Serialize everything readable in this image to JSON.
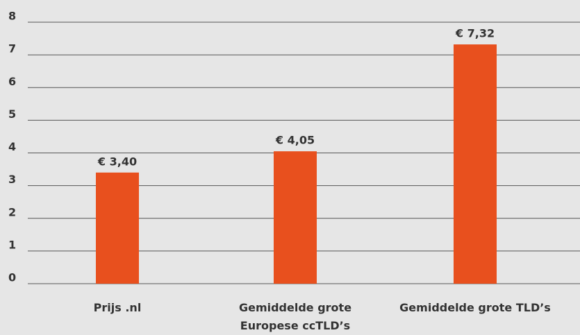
{
  "chart_data": {
    "type": "bar",
    "categories": [
      "Prijs .nl",
      "Gemiddelde grote\nEuropese ccTLD’s",
      "Gemiddelde grote TLD’s"
    ],
    "values": [
      3.4,
      4.05,
      7.32
    ],
    "value_labels": [
      "€ 3,40",
      "€ 4,05",
      "€ 7,32"
    ],
    "color": "#e8501e",
    "ylim": [
      0,
      8
    ],
    "yticks": [
      0,
      1,
      2,
      3,
      4,
      5,
      6,
      7,
      8
    ],
    "grid": true
  }
}
